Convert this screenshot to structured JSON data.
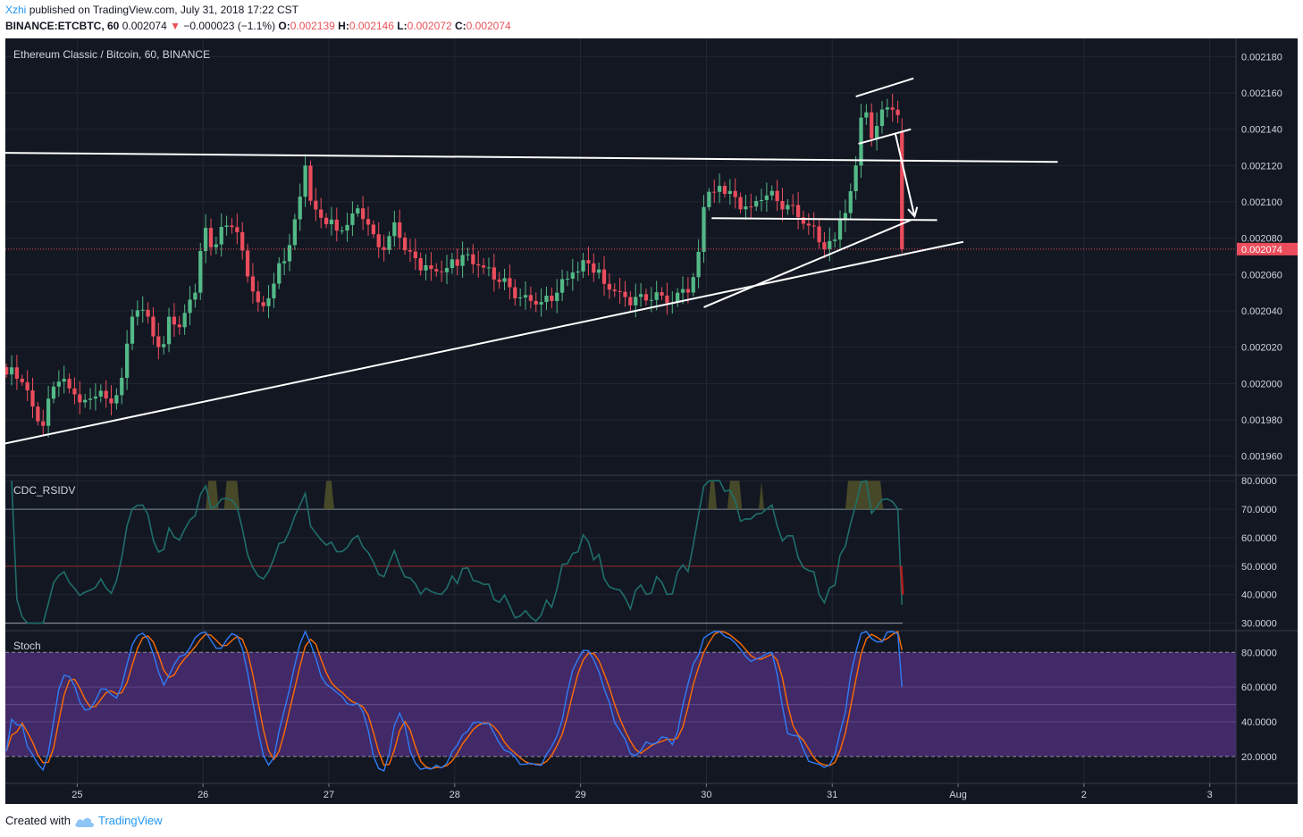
{
  "header": {
    "author": "Xzhi",
    "published": "published on TradingView.com, July 31, 2018 17:22 CST",
    "symbol": "BINANCE:ETCBTC, 60",
    "last": "0.002074",
    "change_arrow": "▼",
    "change": "−0.000023 (−1.1%)",
    "o_label": "O:",
    "o_val": "0.002139",
    "h_label": "H:",
    "h_val": "0.002146",
    "l_label": "L:",
    "l_val": "0.002072",
    "c_label": "C:",
    "c_val": "0.002074"
  },
  "panes": {
    "main_title": "Ethereum Classic / Bitcoin, 60, BINANCE",
    "rsi_title": "CDC_RSIDV",
    "stoch_title": "Stoch"
  },
  "footer": {
    "created_with": "Created with",
    "brand": "TradingView"
  },
  "colors": {
    "background": "#131722",
    "up": "#53b987",
    "down": "#eb4d5c",
    "trendline": "#ffffff",
    "rsi": "#1f6f6b",
    "stoch_k": "#2f7cf6",
    "stoch_d": "#ff6d00",
    "stoch_band": "#4b2d73",
    "price_tag": "#eb4d5c"
  },
  "chart_data": [
    {
      "type": "candlestick",
      "symbol": "BINANCE:ETCBTC",
      "interval": "60",
      "current_price": "0.002074",
      "ylim": [
        0.00195,
        0.00219
      ],
      "y_ticks": [
        "0.002180",
        "0.002160",
        "0.002140",
        "0.002120",
        "0.002100",
        "0.002080",
        "0.002060",
        "0.002040",
        "0.002020",
        "0.002000",
        "0.001980",
        "0.001960"
      ],
      "x_ticks": [
        "25",
        "26",
        "27",
        "28",
        "29",
        "30",
        "31",
        "Aug",
        "2",
        "3"
      ],
      "x_tick_hours": [
        24,
        48,
        72,
        96,
        120,
        144,
        168,
        192,
        216,
        240
      ],
      "xlim_hours": [
        10.3,
        245
      ],
      "anchors_hours": [
        10.5,
        14,
        17,
        20,
        23.5,
        26,
        28,
        30,
        32.5,
        35,
        38,
        40,
        41.5,
        44,
        45.5,
        47,
        48,
        49,
        50,
        53,
        55,
        59,
        64,
        66,
        67.5,
        69,
        71,
        74,
        78,
        81,
        83,
        84.5,
        86,
        88,
        93,
        98,
        103,
        110,
        114,
        117,
        121,
        125,
        130,
        137,
        142,
        143.8,
        145,
        148,
        150,
        153,
        155,
        158,
        160,
        162,
        164,
        165.5,
        167,
        168.5,
        169.5,
        171,
        172.5,
        173.5,
        174.5,
        175.5,
        177.5,
        179,
        180.5,
        181.2
      ],
      "anchors_close": [
        0.002005,
        0.002,
        0.001975,
        0.002003,
        0.001995,
        0.00199,
        0.002,
        0.001984,
        0.002,
        0.002046,
        0.002035,
        0.002015,
        0.002035,
        0.00203,
        0.00205,
        0.00205,
        0.002095,
        0.002078,
        0.002072,
        0.00209,
        0.002078,
        0.00204,
        0.00207,
        0.002095,
        0.00212,
        0.002095,
        0.00209,
        0.002083,
        0.0021,
        0.002075,
        0.002073,
        0.002085,
        0.002078,
        0.00207,
        0.00206,
        0.002072,
        0.002058,
        0.002048,
        0.002043,
        0.002057,
        0.002068,
        0.002053,
        0.002048,
        0.002044,
        0.00206,
        0.002105,
        0.002105,
        0.002108,
        0.0021,
        0.002095,
        0.002103,
        0.0021,
        0.0021,
        0.002093,
        0.002085,
        0.002078,
        0.002072,
        0.00208,
        0.00209,
        0.002098,
        0.00212,
        0.002148,
        0.002145,
        0.002135,
        0.00215,
        0.002153,
        0.002153,
        0.00214,
        0.002074
      ],
      "last_candle": {
        "open": 0.002139,
        "high": 0.002146,
        "low": 0.002072,
        "close": 0.002074
      },
      "trendlines": [
        {
          "p1": [
            10.3,
            0.001967
          ],
          "p2": [
            193,
            0.002078
          ]
        },
        {
          "p1": [
            143.5,
            0.002042
          ],
          "p2": [
            183,
            0.00209
          ]
        },
        {
          "p1": [
            10.3,
            0.002127
          ],
          "p2": [
            211,
            0.002122
          ]
        },
        {
          "p1": [
            145,
            0.002091
          ],
          "p2": [
            188,
            0.00209
          ]
        },
        {
          "p1": [
            172.5,
            0.002158
          ],
          "p2": [
            183.5,
            0.002168
          ]
        },
        {
          "p1": [
            173,
            0.002132
          ],
          "p2": [
            183,
            0.00214
          ]
        }
      ],
      "arrow": {
        "from": [
          180,
          0.002138
        ],
        "to": [
          183.7,
          0.002092
        ]
      }
    },
    {
      "type": "line",
      "name": "CDC_RSIDV",
      "ylim": [
        28,
        81
      ],
      "y_ticks": [
        "80.0000",
        "70.0000",
        "60.0000",
        "50.0000",
        "40.0000",
        "30.0000"
      ],
      "levels": [
        70,
        50,
        30
      ],
      "overbought_hours": [
        [
          48.5,
          51
        ],
        [
          52,
          55
        ],
        [
          71,
          73
        ],
        [
          144.3,
          146
        ],
        [
          148,
          150.8
        ],
        [
          154,
          155
        ],
        [
          170.5,
          177.7
        ]
      ]
    },
    {
      "type": "line",
      "name": "Stoch",
      "ylim": [
        5,
        92
      ],
      "y_ticks": [
        "80.0000",
        "60.0000",
        "40.0000",
        "20.0000"
      ],
      "band": [
        20,
        80
      ],
      "mid": 50
    }
  ]
}
